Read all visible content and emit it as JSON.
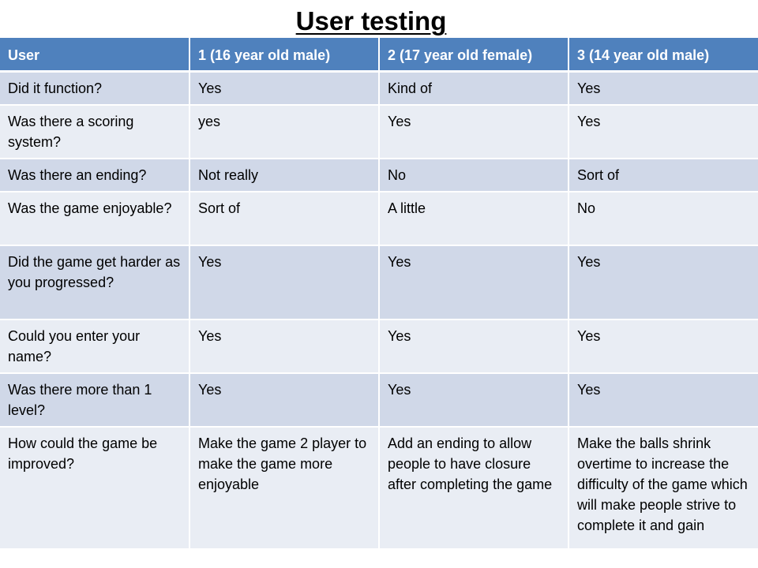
{
  "title": "User testing",
  "table": {
    "headers": [
      "User",
      "1 (16 year old male)",
      " 2 (17 year old female)",
      "3 (14 year old male)"
    ],
    "rows": [
      [
        "Did it function?",
        "Yes",
        "Kind of",
        "Yes"
      ],
      [
        "Was there a scoring system?",
        "yes",
        "Yes",
        "Yes"
      ],
      [
        "Was there an ending?",
        "Not really",
        "No",
        "Sort of"
      ],
      [
        "Was the game enjoyable?",
        "Sort of",
        "A little",
        "No"
      ],
      [
        "Did the game get harder as you progressed?",
        "Yes",
        "Yes",
        "Yes"
      ],
      [
        "Could you enter your name?",
        "Yes",
        "Yes",
        "Yes"
      ],
      [
        "Was there more than 1 level?",
        "Yes",
        "Yes",
        "Yes"
      ],
      [
        "How could the game be improved?",
        "Make the game 2 player to make the game more enjoyable",
        "Add an ending to allow people to have closure after completing the game",
        "Make the balls shrink overtime to increase the difficulty of the game which will make people strive to complete it and gain"
      ]
    ]
  },
  "colors": {
    "header_bg": "#4f81bd",
    "row_odd_bg": "#d0d8e8",
    "row_even_bg": "#e9edf4"
  }
}
